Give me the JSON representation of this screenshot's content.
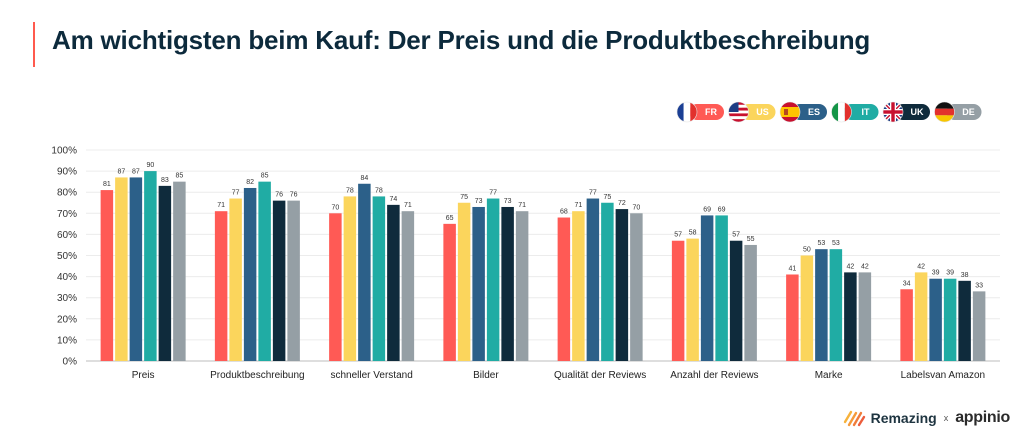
{
  "title": "Am wichtigsten beim Kauf: Der Preis und die Produktbeschreibung",
  "colors": {
    "accent": "#ff5a4e",
    "title": "#0c2a3c"
  },
  "legend": [
    {
      "code": "FR",
      "flag": "france-flag-icon",
      "color": "#ff5a55"
    },
    {
      "code": "US",
      "flag": "usa-flag-icon",
      "color": "#fbd55c"
    },
    {
      "code": "ES",
      "flag": "spain-flag-icon",
      "color": "#2c6089"
    },
    {
      "code": "IT",
      "flag": "italy-flag-icon",
      "color": "#20aca4"
    },
    {
      "code": "UK",
      "flag": "uk-flag-icon",
      "color": "#0f2b3c"
    },
    {
      "code": "DE",
      "flag": "germany-flag-icon",
      "color": "#959fa5"
    }
  ],
  "chart_data": {
    "type": "bar",
    "title": "Am wichtigsten beim Kauf: Der Preis und die Produktbeschreibung",
    "categories": [
      "Preis",
      "Produktbeschreibung",
      "schneller Verstand",
      "Bilder",
      "Qualität der Reviews",
      "Anzahl der Reviews",
      "Marke",
      "Labelsvan Amazon"
    ],
    "series": [
      {
        "name": "FR",
        "color": "#ff5a55",
        "values": [
          81,
          71,
          70,
          65,
          68,
          57,
          41,
          34
        ]
      },
      {
        "name": "US",
        "color": "#fbd55c",
        "values": [
          87,
          77,
          78,
          75,
          71,
          58,
          50,
          42
        ]
      },
      {
        "name": "ES",
        "color": "#2c6089",
        "values": [
          87,
          82,
          84,
          73,
          77,
          69,
          53,
          39
        ]
      },
      {
        "name": "IT",
        "color": "#20aca4",
        "values": [
          90,
          85,
          78,
          77,
          75,
          69,
          53,
          39
        ]
      },
      {
        "name": "UK",
        "color": "#0f2b3c",
        "values": [
          83,
          76,
          74,
          73,
          72,
          57,
          42,
          38
        ]
      },
      {
        "name": "DE",
        "color": "#959fa5",
        "values": [
          85,
          76,
          71,
          71,
          70,
          55,
          42,
          33
        ]
      }
    ],
    "yticks": [
      "0%",
      "10%",
      "20%",
      "30%",
      "40%",
      "50%",
      "60%",
      "70%",
      "80%",
      "90%",
      "100%"
    ],
    "ylim": [
      0,
      100
    ],
    "xlabel": "",
    "ylabel": "",
    "grid": true,
    "legend_position": "top-right"
  },
  "footer": {
    "brand1": "Remazing",
    "separator": "x",
    "brand2": "appinio"
  }
}
